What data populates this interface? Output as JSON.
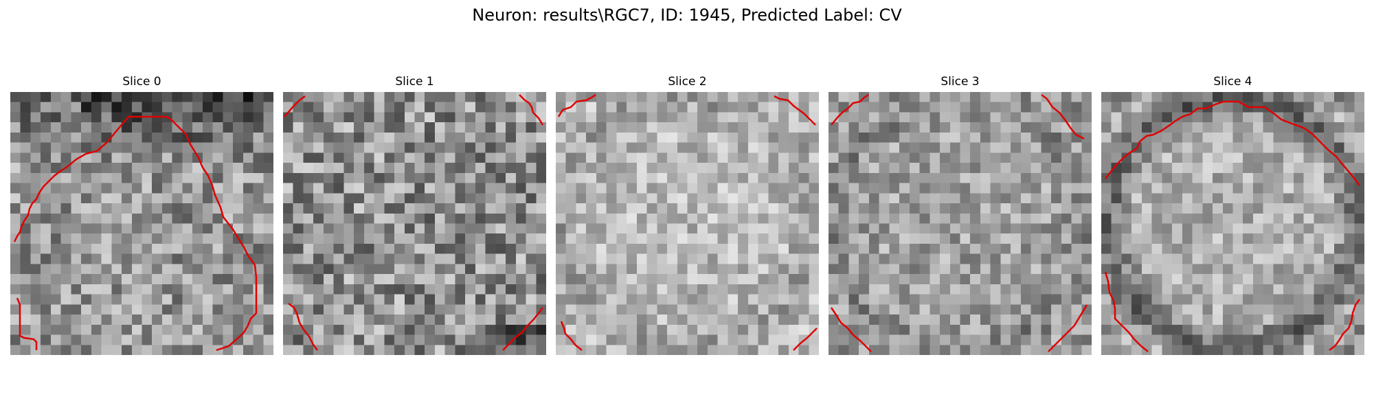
{
  "figure": {
    "title": "Neuron: results\\RGC7, ID: 1945, Predicted Label: CV",
    "contour_color": "#e00000"
  },
  "slices": [
    {
      "title": "Slice 0",
      "key": "s0"
    },
    {
      "title": "Slice 1",
      "key": "s1"
    },
    {
      "title": "Slice 2",
      "key": "s2"
    },
    {
      "title": "Slice 3",
      "key": "s3"
    },
    {
      "title": "Slice 4",
      "key": "s4"
    }
  ]
}
